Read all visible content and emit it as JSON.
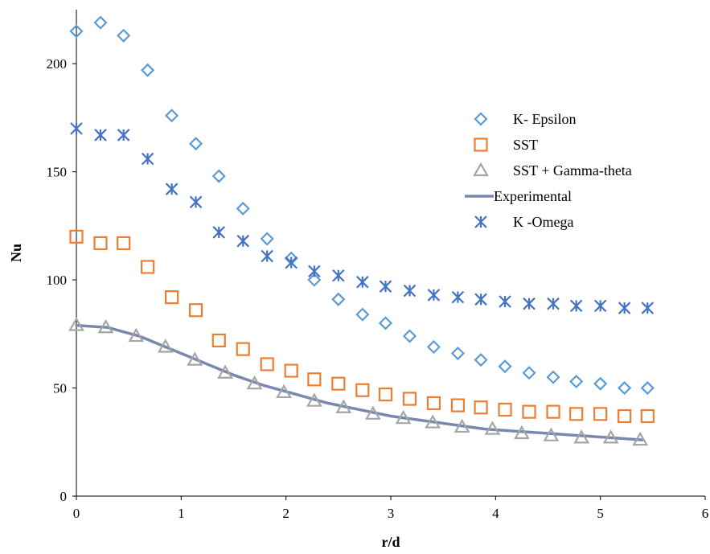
{
  "chart_data": {
    "type": "scatter",
    "title": "",
    "xlabel": "r/d",
    "ylabel": "Nu",
    "xlim": [
      0,
      6
    ],
    "ylim": [
      0,
      225
    ],
    "xticks": [
      0,
      1,
      2,
      3,
      4,
      5,
      6
    ],
    "yticks": [
      0,
      50,
      100,
      150,
      200
    ],
    "xtick_labels": [
      "0",
      "1",
      "2",
      "3",
      "4",
      "5",
      "6"
    ],
    "ytick_labels": [
      "0",
      "50",
      "100",
      "150",
      "200"
    ],
    "grid": false,
    "legend_position": "right-middle",
    "series": [
      {
        "name": "K- Epsilon",
        "marker": "diamond",
        "color": "#5b9bd5",
        "x": [
          0.0,
          0.23,
          0.45,
          0.68,
          0.91,
          1.14,
          1.36,
          1.59,
          1.82,
          2.05,
          2.27,
          2.5,
          2.73,
          2.95,
          3.18,
          3.41,
          3.64,
          3.86,
          4.09,
          4.32,
          4.55,
          4.77,
          5.0,
          5.23,
          5.45
        ],
        "y": [
          215,
          219,
          213,
          197,
          176,
          163,
          148,
          133,
          119,
          110,
          100,
          91,
          84,
          80,
          74,
          69,
          66,
          63,
          60,
          57,
          55,
          53,
          52,
          50,
          50
        ]
      },
      {
        "name": "SST",
        "marker": "square",
        "color": "#ed7d31",
        "x": [
          0.0,
          0.23,
          0.45,
          0.68,
          0.91,
          1.14,
          1.36,
          1.59,
          1.82,
          2.05,
          2.27,
          2.5,
          2.73,
          2.95,
          3.18,
          3.41,
          3.64,
          3.86,
          4.09,
          4.32,
          4.55,
          4.77,
          5.0,
          5.23,
          5.45
        ],
        "y": [
          120,
          117,
          117,
          106,
          92,
          86,
          72,
          68,
          61,
          58,
          54,
          52,
          49,
          47,
          45,
          43,
          42,
          41,
          40,
          39,
          39,
          38,
          38,
          37,
          37
        ]
      },
      {
        "name": "SST + Gamma-theta",
        "marker": "triangle",
        "color": "#a5a5a5",
        "x": [
          0.0,
          0.28,
          0.57,
          0.85,
          1.13,
          1.42,
          1.7,
          1.98,
          2.27,
          2.55,
          2.83,
          3.12,
          3.4,
          3.68,
          3.97,
          4.25,
          4.53,
          4.82,
          5.1,
          5.38
        ],
        "y": [
          79,
          78,
          74,
          69,
          63,
          57,
          52,
          48,
          44,
          41,
          38,
          36,
          34,
          32,
          31,
          29,
          28,
          27,
          27,
          26
        ]
      },
      {
        "name": "Experimental",
        "marker": "line",
        "color": "#7a88b0",
        "x": [
          0.0,
          0.3,
          0.6,
          0.9,
          1.2,
          1.5,
          1.8,
          2.1,
          2.4,
          2.7,
          3.0,
          3.3,
          3.6,
          3.9,
          4.2,
          4.5,
          4.8,
          5.1,
          5.4
        ],
        "y": [
          79,
          78,
          74,
          68,
          62,
          56,
          51,
          47,
          43,
          40,
          37,
          35,
          33,
          31,
          30,
          29,
          28,
          27,
          26
        ]
      },
      {
        "name": "K -Omega",
        "marker": "asterisk",
        "color": "#4472c4",
        "x": [
          0.0,
          0.23,
          0.45,
          0.68,
          0.91,
          1.14,
          1.36,
          1.59,
          1.82,
          2.05,
          2.27,
          2.5,
          2.73,
          2.95,
          3.18,
          3.41,
          3.64,
          3.86,
          4.09,
          4.32,
          4.55,
          4.77,
          5.0,
          5.23,
          5.45
        ],
        "y": [
          170,
          167,
          167,
          156,
          142,
          136,
          122,
          118,
          111,
          108,
          104,
          102,
          99,
          97,
          95,
          93,
          92,
          91,
          90,
          89,
          89,
          88,
          88,
          87,
          87
        ]
      }
    ]
  }
}
